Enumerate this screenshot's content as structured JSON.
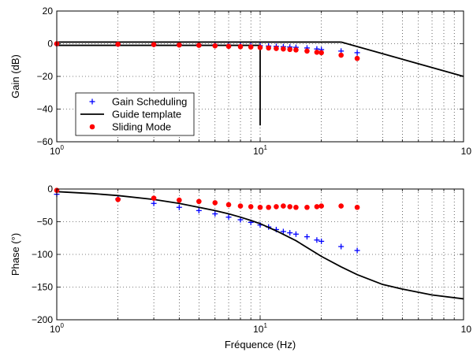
{
  "chart_data": [
    {
      "type": "line",
      "ylabel": "Gain (dB)",
      "xscale": "log",
      "xlim": [
        1,
        100
      ],
      "ylim": [
        -60,
        20
      ],
      "yticks": [
        20,
        0,
        -20,
        -40,
        -60
      ],
      "xtick_labels": [
        {
          "base": "10",
          "exp": "0"
        },
        {
          "base": "10",
          "exp": "1"
        },
        {
          "base": "10",
          "exp": ""
        }
      ],
      "grid": true,
      "legend": {
        "placement": "lower-left",
        "entries": [
          "Gain Scheduling",
          "Guide template",
          "Sliding Mode"
        ]
      },
      "series": [
        {
          "name": "Gain Scheduling",
          "style": "marker-plus",
          "color": "#0000ff",
          "x": [
            1,
            2,
            3,
            4,
            5,
            6,
            7,
            8,
            9,
            10,
            11,
            12,
            13,
            14,
            15,
            17,
            19,
            20,
            25,
            30
          ],
          "y": [
            -0.2,
            -0.3,
            -0.4,
            -0.5,
            -0.6,
            -0.7,
            -0.8,
            -0.9,
            -1.0,
            -1.2,
            -1.4,
            -1.6,
            -1.8,
            -2.0,
            -2.2,
            -2.6,
            -3.2,
            -3.6,
            -4.5,
            -5.5
          ]
        },
        {
          "name": "Guide template",
          "style": "line",
          "color": "#000000",
          "segments": [
            {
              "x": [
                1,
                25
              ],
              "y": [
                1,
                1
              ]
            },
            {
              "x": [
                25,
                100
              ],
              "y": [
                1,
                -20
              ]
            },
            {
              "x": [
                1,
                10,
                10
              ],
              "y": [
                -1,
                -1,
                -50
              ]
            }
          ]
        },
        {
          "name": "Sliding Mode",
          "style": "marker-dot",
          "color": "#ff0000",
          "x": [
            1,
            2,
            3,
            4,
            5,
            6,
            7,
            8,
            9,
            10,
            11,
            12,
            13,
            14,
            15,
            17,
            19,
            20,
            25,
            30
          ],
          "y": [
            0,
            -0.3,
            -0.5,
            -0.8,
            -1.0,
            -1.3,
            -1.6,
            -1.8,
            -2.0,
            -2.3,
            -2.6,
            -2.9,
            -3.2,
            -3.5,
            -3.8,
            -4.5,
            -5.2,
            -5.5,
            -7.0,
            -9.0
          ]
        }
      ]
    },
    {
      "type": "line",
      "xlabel": "Fréquence (Hz)",
      "ylabel": "Phase (°)",
      "xscale": "log",
      "xlim": [
        1,
        100
      ],
      "ylim": [
        -200,
        0
      ],
      "yticks": [
        0,
        -50,
        -100,
        -150,
        -200
      ],
      "xtick_labels": [
        {
          "base": "10",
          "exp": "0"
        },
        {
          "base": "10",
          "exp": "1"
        },
        {
          "base": "10",
          "exp": ""
        }
      ],
      "grid": true,
      "series": [
        {
          "name": "Gain Scheduling",
          "style": "marker-plus",
          "color": "#0000ff",
          "x": [
            1,
            2,
            3,
            4,
            5,
            6,
            7,
            8,
            9,
            10,
            11,
            12,
            13,
            14,
            15,
            17,
            19,
            20,
            25,
            30
          ],
          "y": [
            -8,
            -15,
            -22,
            -28,
            -33,
            -38,
            -43,
            -47,
            -51,
            -55,
            -58,
            -62,
            -65,
            -67,
            -69,
            -73,
            -78,
            -80,
            -88,
            -94
          ]
        },
        {
          "name": "Guide template",
          "style": "line",
          "color": "#000000",
          "x": [
            1,
            1.5,
            2,
            3,
            4,
            5,
            6,
            7,
            8,
            9,
            10,
            12,
            15,
            20,
            25,
            30,
            40,
            50,
            70,
            100
          ],
          "y": [
            -4,
            -7,
            -10,
            -16,
            -22,
            -28,
            -33,
            -38,
            -43,
            -48,
            -53,
            -64,
            -79,
            -103,
            -119,
            -131,
            -146,
            -153,
            -162,
            -168
          ]
        },
        {
          "name": "Sliding Mode",
          "style": "marker-dot",
          "color": "#ff0000",
          "x": [
            1,
            2,
            3,
            4,
            5,
            6,
            7,
            8,
            9,
            10,
            11,
            12,
            13,
            14,
            15,
            17,
            19,
            20,
            25,
            30
          ],
          "y": [
            -2,
            -16,
            -14,
            -17,
            -19,
            -21,
            -24,
            -26,
            -27,
            -28,
            -28,
            -27,
            -26,
            -27,
            -28,
            -28,
            -27,
            -26,
            -26,
            -28
          ]
        }
      ]
    }
  ]
}
